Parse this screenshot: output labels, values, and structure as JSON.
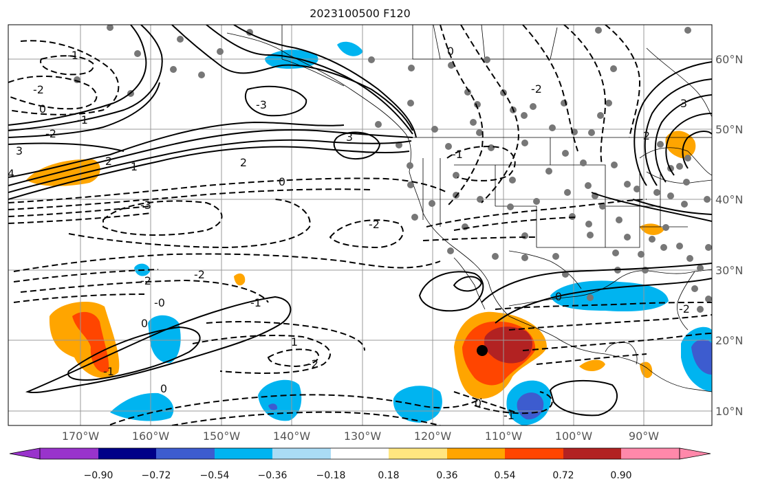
{
  "title": "2023100500 F120",
  "map": {
    "lon_labels": [
      "170°W",
      "160°W",
      "150°W",
      "140°W",
      "130°W",
      "120°W",
      "110°W",
      "100°W",
      "90°W"
    ],
    "lat_labels": [
      "60°N",
      "50°N",
      "40°N",
      "30°N",
      "20°N",
      "10°N"
    ],
    "contour_labels": [
      "-1",
      "-2",
      "0",
      "-1",
      "-2",
      "3",
      "-3",
      "2",
      "0",
      "3",
      "2",
      "1",
      "-3",
      "-2",
      "-2",
      "-2",
      "-0",
      "0",
      "-1",
      "-1",
      "1",
      "-2",
      "0",
      "0",
      "-1",
      "0",
      "-2",
      "0",
      "-2",
      "3",
      "2",
      "4",
      "-1"
    ],
    "marker": "black-dot"
  },
  "colorbar": {
    "tick_labels": [
      "−0.90",
      "−0.72",
      "−0.54",
      "−0.36",
      "−0.18",
      "0.18",
      "0.36",
      "0.54",
      "0.72",
      "0.90"
    ],
    "colors": {
      "under": "#9933cc",
      "bins": [
        "#000088",
        "#3d5ccf",
        "#00b4f0",
        "#aadcf5",
        "#ffffff",
        "#ffe680",
        "#ffa500",
        "#ff4500",
        "#b22222"
      ],
      "over": "#ff88aa"
    }
  }
}
